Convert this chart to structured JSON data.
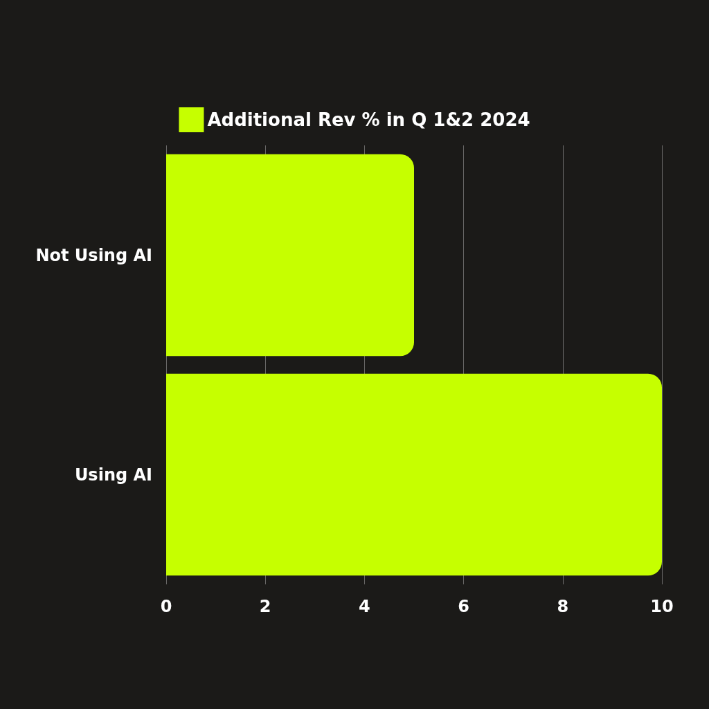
{
  "chart_data": {
    "type": "bar",
    "orientation": "horizontal",
    "categories": [
      "Not Using AI",
      "Using AI"
    ],
    "series": [
      {
        "name": "Additional Rev % in Q 1&2 2024",
        "color": "#c6ff00",
        "values": [
          5,
          10
        ]
      }
    ],
    "xlim": [
      0,
      10
    ],
    "xticks": [
      0,
      2,
      4,
      6,
      8,
      10
    ],
    "grid": "x",
    "legend": "top"
  }
}
